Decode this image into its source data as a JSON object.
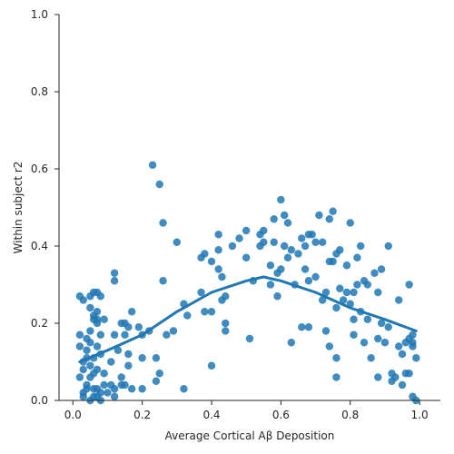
{
  "chart_data": {
    "type": "scatter",
    "xlabel": "Average Cortical Aβ Deposition",
    "ylabel": "Within subject r2",
    "xlim": [
      -0.04,
      1.06
    ],
    "ylim": [
      0.0,
      1.0
    ],
    "xticks": [
      "0.0",
      "0.2",
      "0.4",
      "0.6",
      "0.8",
      "1.0"
    ],
    "yticks": [
      "0.0",
      "0.2",
      "0.4",
      "0.6",
      "0.8",
      "1.0"
    ],
    "grid": false,
    "colors": {
      "points": "#1f77b4",
      "trend": "#1f77b4"
    },
    "points": [
      [
        0.23,
        0.61
      ],
      [
        0.25,
        0.56
      ],
      [
        0.26,
        0.46
      ],
      [
        0.26,
        0.31
      ],
      [
        0.3,
        0.41
      ],
      [
        0.22,
        0.18
      ],
      [
        0.24,
        0.11
      ],
      [
        0.25,
        0.07
      ],
      [
        0.24,
        0.05
      ],
      [
        0.27,
        0.17
      ],
      [
        0.33,
        0.22
      ],
      [
        0.32,
        0.25
      ],
      [
        0.29,
        0.18
      ],
      [
        0.32,
        0.03
      ],
      [
        0.37,
        0.37
      ],
      [
        0.37,
        0.28
      ],
      [
        0.38,
        0.38
      ],
      [
        0.38,
        0.23
      ],
      [
        0.4,
        0.36
      ],
      [
        0.4,
        0.09
      ],
      [
        0.4,
        0.23
      ],
      [
        0.42,
        0.34
      ],
      [
        0.42,
        0.43
      ],
      [
        0.42,
        0.39
      ],
      [
        0.43,
        0.32
      ],
      [
        0.43,
        0.26
      ],
      [
        0.44,
        0.18
      ],
      [
        0.44,
        0.2
      ],
      [
        0.44,
        0.27
      ],
      [
        0.46,
        0.4
      ],
      [
        0.48,
        0.42
      ],
      [
        0.5,
        0.44
      ],
      [
        0.5,
        0.37
      ],
      [
        0.51,
        0.16
      ],
      [
        0.52,
        0.31
      ],
      [
        0.54,
        0.4
      ],
      [
        0.54,
        0.43
      ],
      [
        0.55,
        0.44
      ],
      [
        0.55,
        0.41
      ],
      [
        0.57,
        0.35
      ],
      [
        0.57,
        0.3
      ],
      [
        0.58,
        0.47
      ],
      [
        0.58,
        0.41
      ],
      [
        0.59,
        0.33
      ],
      [
        0.59,
        0.27
      ],
      [
        0.6,
        0.34
      ],
      [
        0.6,
        0.52
      ],
      [
        0.61,
        0.48
      ],
      [
        0.61,
        0.4
      ],
      [
        0.62,
        0.46
      ],
      [
        0.62,
        0.37
      ],
      [
        0.63,
        0.15
      ],
      [
        0.63,
        0.39
      ],
      [
        0.64,
        0.3
      ],
      [
        0.65,
        0.38
      ],
      [
        0.66,
        0.19
      ],
      [
        0.66,
        0.42
      ],
      [
        0.67,
        0.34
      ],
      [
        0.67,
        0.4
      ],
      [
        0.68,
        0.43
      ],
      [
        0.68,
        0.19
      ],
      [
        0.68,
        0.31
      ],
      [
        0.69,
        0.43
      ],
      [
        0.7,
        0.32
      ],
      [
        0.7,
        0.41
      ],
      [
        0.71,
        0.48
      ],
      [
        0.72,
        0.26
      ],
      [
        0.72,
        0.41
      ],
      [
        0.73,
        0.18
      ],
      [
        0.73,
        0.28
      ],
      [
        0.74,
        0.36
      ],
      [
        0.74,
        0.47
      ],
      [
        0.74,
        0.14
      ],
      [
        0.75,
        0.36
      ],
      [
        0.75,
        0.49
      ],
      [
        0.76,
        0.11
      ],
      [
        0.76,
        0.06
      ],
      [
        0.76,
        0.38
      ],
      [
        0.76,
        0.24
      ],
      [
        0.77,
        0.39
      ],
      [
        0.77,
        0.29
      ],
      [
        0.78,
        0.26
      ],
      [
        0.79,
        0.35
      ],
      [
        0.79,
        0.28
      ],
      [
        0.8,
        0.46
      ],
      [
        0.8,
        0.25
      ],
      [
        0.81,
        0.28
      ],
      [
        0.81,
        0.17
      ],
      [
        0.81,
        0.21
      ],
      [
        0.82,
        0.3
      ],
      [
        0.82,
        0.37
      ],
      [
        0.83,
        0.23
      ],
      [
        0.83,
        0.4
      ],
      [
        0.84,
        0.15
      ],
      [
        0.84,
        0.31
      ],
      [
        0.85,
        0.21
      ],
      [
        0.85,
        0.3
      ],
      [
        0.86,
        0.11
      ],
      [
        0.87,
        0.33
      ],
      [
        0.88,
        0.16
      ],
      [
        0.88,
        0.06
      ],
      [
        0.88,
        0.28
      ],
      [
        0.89,
        0.34
      ],
      [
        0.89,
        0.2
      ],
      [
        0.9,
        0.15
      ],
      [
        0.91,
        0.19
      ],
      [
        0.91,
        0.4
      ],
      [
        0.92,
        0.07
      ],
      [
        0.92,
        0.05
      ],
      [
        0.93,
        0.06
      ],
      [
        0.94,
        0.26
      ],
      [
        0.94,
        0.14
      ],
      [
        0.95,
        0.04
      ],
      [
        0.95,
        0.12
      ],
      [
        0.96,
        0.07
      ],
      [
        0.96,
        0.15
      ],
      [
        0.97,
        0.16
      ],
      [
        0.97,
        0.3
      ],
      [
        0.97,
        0.07
      ],
      [
        0.98,
        0.14
      ],
      [
        0.98,
        0.17
      ],
      [
        0.98,
        0.15
      ],
      [
        0.98,
        0.01
      ],
      [
        0.99,
        0.0
      ],
      [
        0.99,
        0.11
      ],
      [
        0.02,
        0.17
      ],
      [
        0.02,
        0.14
      ],
      [
        0.02,
        0.27
      ],
      [
        0.02,
        0.06
      ],
      [
        0.03,
        0.1
      ],
      [
        0.03,
        0.02
      ],
      [
        0.03,
        0.08
      ],
      [
        0.03,
        0.26
      ],
      [
        0.03,
        0.01
      ],
      [
        0.04,
        0.16
      ],
      [
        0.04,
        0.13
      ],
      [
        0.04,
        0.04
      ],
      [
        0.04,
        0.11
      ],
      [
        0.04,
        0.03
      ],
      [
        0.05,
        0.09
      ],
      [
        0.05,
        0.24
      ],
      [
        0.05,
        0.18
      ],
      [
        0.05,
        0.0
      ],
      [
        0.05,
        0.15
      ],
      [
        0.05,
        0.27
      ],
      [
        0.05,
        0.06
      ],
      [
        0.06,
        0.21
      ],
      [
        0.06,
        0.07
      ],
      [
        0.06,
        0.11
      ],
      [
        0.06,
        0.01
      ],
      [
        0.06,
        0.22
      ],
      [
        0.06,
        0.28
      ],
      [
        0.06,
        0.03
      ],
      [
        0.07,
        0.28
      ],
      [
        0.07,
        0.23
      ],
      [
        0.07,
        0.21
      ],
      [
        0.07,
        0.08
      ],
      [
        0.07,
        0.2
      ],
      [
        0.07,
        0.03
      ],
      [
        0.07,
        0.01
      ],
      [
        0.07,
        0.14
      ],
      [
        0.08,
        0.12
      ],
      [
        0.08,
        0.17
      ],
      [
        0.08,
        0.27
      ],
      [
        0.08,
        0.02
      ],
      [
        0.08,
        0.0
      ],
      [
        0.09,
        0.07
      ],
      [
        0.09,
        0.21
      ],
      [
        0.09,
        0.04
      ],
      [
        0.1,
        0.02
      ],
      [
        0.11,
        0.1
      ],
      [
        0.11,
        0.04
      ],
      [
        0.12,
        0.31
      ],
      [
        0.12,
        0.03
      ],
      [
        0.12,
        0.17
      ],
      [
        0.12,
        0.01
      ],
      [
        0.12,
        0.33
      ],
      [
        0.13,
        0.13
      ],
      [
        0.14,
        0.2
      ],
      [
        0.14,
        0.04
      ],
      [
        0.14,
        0.06
      ],
      [
        0.15,
        0.2
      ],
      [
        0.15,
        0.17
      ],
      [
        0.15,
        0.04
      ],
      [
        0.16,
        0.12
      ],
      [
        0.16,
        0.09
      ],
      [
        0.16,
        0.19
      ],
      [
        0.17,
        0.23
      ],
      [
        0.17,
        0.03
      ],
      [
        0.19,
        0.19
      ],
      [
        0.2,
        0.17
      ],
      [
        0.2,
        0.03
      ],
      [
        0.2,
        0.11
      ]
    ],
    "trend_line": {
      "x": [
        0.02,
        0.1,
        0.2,
        0.3,
        0.4,
        0.5,
        0.55,
        0.6,
        0.7,
        0.8,
        0.9,
        0.99
      ],
      "y": [
        0.1,
        0.13,
        0.17,
        0.23,
        0.28,
        0.31,
        0.32,
        0.31,
        0.28,
        0.24,
        0.21,
        0.18
      ]
    }
  }
}
